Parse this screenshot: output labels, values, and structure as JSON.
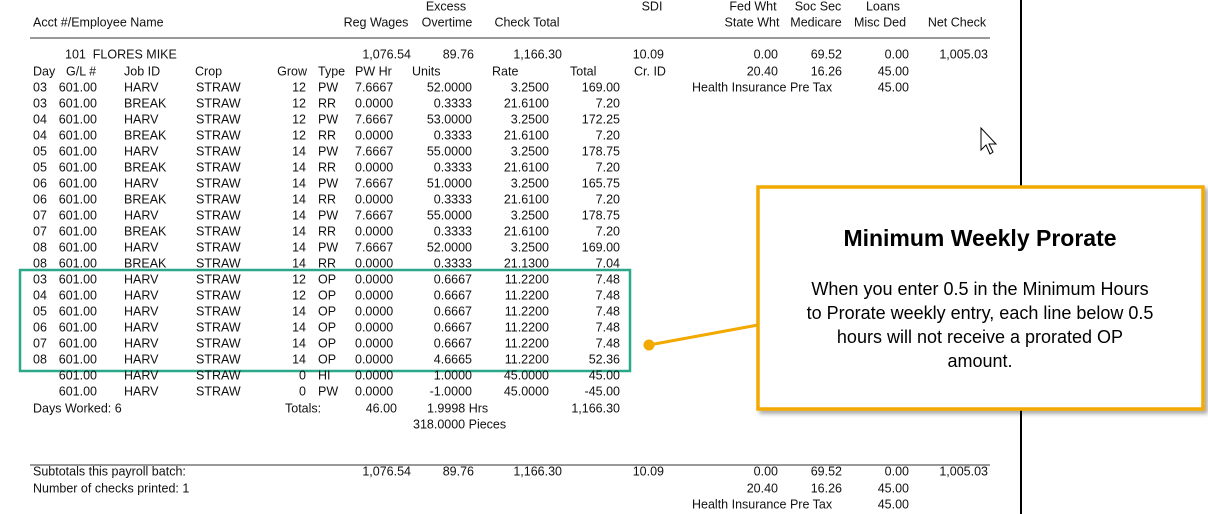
{
  "header": {
    "row1": [
      "Excess",
      "SDI",
      "Fed Wht",
      "Soc Sec",
      "Loans"
    ],
    "row2": [
      "Acct #/Employee Name",
      "Reg Wages",
      "Overtime",
      "Check Total",
      "State Wht",
      "Medicare",
      "Misc Ded",
      "Net Check"
    ]
  },
  "employee": {
    "name": "101  FLORES MIKE",
    "amounts": [
      "1,076.54",
      "89.76",
      "1,166.30",
      "10.09",
      "0.00",
      "69.52",
      "0.00",
      "1,005.03"
    ],
    "amounts2": [
      "20.40",
      "16.26",
      "45.00"
    ],
    "deduction": {
      "label": "Health Insurance Pre Tax",
      "amount": "45.00"
    }
  },
  "detail": {
    "columns": [
      "Day",
      "G/L #",
      "Job ID",
      "Crop",
      "Grow",
      "Type",
      "PW Hr",
      "Units",
      "Rate",
      "Total",
      "Cr. ID"
    ],
    "rows": [
      [
        "03",
        "601.00",
        "HARV",
        "STRAW",
        "12",
        "PW",
        "7.6667",
        "52.0000",
        "3.2500",
        "169.00"
      ],
      [
        "03",
        "601.00",
        "BREAK",
        "STRAW",
        "12",
        "RR",
        "0.0000",
        "0.3333",
        "21.6100",
        "7.20"
      ],
      [
        "04",
        "601.00",
        "HARV",
        "STRAW",
        "12",
        "PW",
        "7.6667",
        "53.0000",
        "3.2500",
        "172.25"
      ],
      [
        "04",
        "601.00",
        "BREAK",
        "STRAW",
        "12",
        "RR",
        "0.0000",
        "0.3333",
        "21.6100",
        "7.20"
      ],
      [
        "05",
        "601.00",
        "HARV",
        "STRAW",
        "14",
        "PW",
        "7.6667",
        "55.0000",
        "3.2500",
        "178.75"
      ],
      [
        "05",
        "601.00",
        "BREAK",
        "STRAW",
        "14",
        "RR",
        "0.0000",
        "0.3333",
        "21.6100",
        "7.20"
      ],
      [
        "06",
        "601.00",
        "HARV",
        "STRAW",
        "14",
        "PW",
        "7.6667",
        "51.0000",
        "3.2500",
        "165.75"
      ],
      [
        "06",
        "601.00",
        "BREAK",
        "STRAW",
        "14",
        "RR",
        "0.0000",
        "0.3333",
        "21.6100",
        "7.20"
      ],
      [
        "07",
        "601.00",
        "HARV",
        "STRAW",
        "14",
        "PW",
        "7.6667",
        "55.0000",
        "3.2500",
        "178.75"
      ],
      [
        "07",
        "601.00",
        "BREAK",
        "STRAW",
        "14",
        "RR",
        "0.0000",
        "0.3333",
        "21.6100",
        "7.20"
      ],
      [
        "08",
        "601.00",
        "HARV",
        "STRAW",
        "14",
        "PW",
        "7.6667",
        "52.0000",
        "3.2500",
        "169.00"
      ],
      [
        "08",
        "601.00",
        "BREAK",
        "STRAW",
        "14",
        "RR",
        "0.0000",
        "0.3333",
        "21.1300",
        "7.04"
      ],
      [
        "03",
        "601.00",
        "HARV",
        "STRAW",
        "12",
        "OP",
        "0.0000",
        "0.6667",
        "11.2200",
        "7.48"
      ],
      [
        "04",
        "601.00",
        "HARV",
        "STRAW",
        "12",
        "OP",
        "0.0000",
        "0.6667",
        "11.2200",
        "7.48"
      ],
      [
        "05",
        "601.00",
        "HARV",
        "STRAW",
        "14",
        "OP",
        "0.0000",
        "0.6667",
        "11.2200",
        "7.48"
      ],
      [
        "06",
        "601.00",
        "HARV",
        "STRAW",
        "14",
        "OP",
        "0.0000",
        "0.6667",
        "11.2200",
        "7.48"
      ],
      [
        "07",
        "601.00",
        "HARV",
        "STRAW",
        "14",
        "OP",
        "0.0000",
        "0.6667",
        "11.2200",
        "7.48"
      ],
      [
        "08",
        "601.00",
        "HARV",
        "STRAW",
        "14",
        "OP",
        "0.0000",
        "4.6665",
        "11.2200",
        "52.36"
      ],
      [
        null,
        "601.00",
        "HARV",
        "STRAW",
        "0",
        "HI",
        "0.0000",
        "1.0000",
        "45.0000",
        "45.00"
      ],
      [
        null,
        "601.00",
        "HARV",
        "STRAW",
        "0",
        "PW",
        "0.0000",
        "-1.0000",
        "45.0000",
        "-45.00"
      ]
    ]
  },
  "totals": {
    "days_worked": "Days Worked: 6",
    "label": "Totals:",
    "pw_hr": "46.00",
    "hrs": "1.9998 Hrs",
    "total": "1,166.30",
    "pieces": "318.0000 Pieces"
  },
  "batch": {
    "label": "Subtotals this payroll batch:",
    "amounts": [
      "1,076.54",
      "89.76",
      "1,166.30",
      "10.09",
      "0.00",
      "69.52",
      "0.00",
      "1,005.03"
    ],
    "checks": "Number of checks printed: 1",
    "amounts2": [
      "20.40",
      "16.26",
      "45.00"
    ],
    "deduction": {
      "label": "Health Insurance Pre Tax",
      "amount": "45.00"
    }
  },
  "callout": {
    "title": "Minimum Weekly Prorate",
    "lines": [
      "When you enter 0.5 in the Minimum Hours",
      "to Prorate weekly entry, each line below 0.5",
      "hours will not receive a prorated OP",
      "amount."
    ]
  }
}
